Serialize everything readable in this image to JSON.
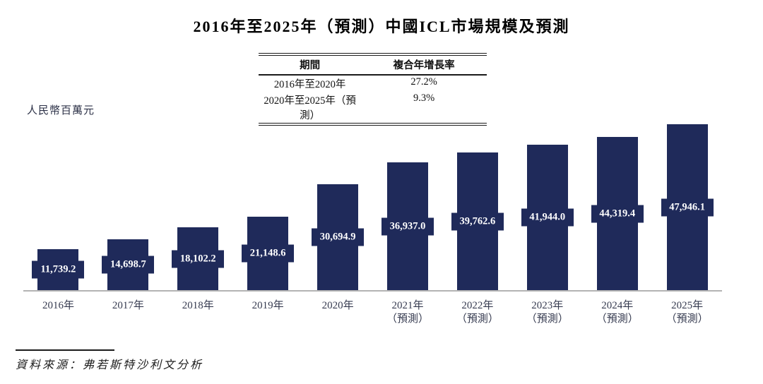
{
  "page": {
    "title": "2016年至2025年（預測）中國ICL市場規模及預測"
  },
  "cagr_table": {
    "col_headers": [
      "期間",
      "複合年增長率"
    ],
    "rows": [
      {
        "period": "2016年至2020年",
        "cagr": "27.2%"
      },
      {
        "period": "2020年至2025年（預測）",
        "cagr": "9.3%"
      }
    ]
  },
  "axis": {
    "unit_label": "人民幣百萬元"
  },
  "source": {
    "text": "資料來源：弗若斯特沙利文分析"
  },
  "colors": {
    "bar": "#1F2A5A",
    "axis_line": "#B3B3B3",
    "badge_text": "#FFFFFF"
  },
  "chart_data": {
    "type": "bar",
    "title": "2016年至2025年（預測）中國ICL市場規模及預測",
    "ylabel": "人民幣百萬元",
    "xlabel": "",
    "ylim": [
      0,
      47946.1
    ],
    "grid": false,
    "legend": "none",
    "categories": [
      {
        "label": "2016年",
        "sub": ""
      },
      {
        "label": "2017年",
        "sub": ""
      },
      {
        "label": "2018年",
        "sub": ""
      },
      {
        "label": "2019年",
        "sub": ""
      },
      {
        "label": "2020年",
        "sub": ""
      },
      {
        "label": "2021年",
        "sub": "（預測）"
      },
      {
        "label": "2022年",
        "sub": "（預測）"
      },
      {
        "label": "2023年",
        "sub": "（預測）"
      },
      {
        "label": "2024年",
        "sub": "（預測）"
      },
      {
        "label": "2025年",
        "sub": "（預測）"
      }
    ],
    "values": [
      11739.2,
      14698.7,
      18102.2,
      21148.6,
      30694.9,
      36937.0,
      39762.6,
      41944.0,
      44319.4,
      47946.1
    ],
    "value_labels": [
      "11,739.2",
      "14,698.7",
      "18,102.2",
      "21,148.6",
      "30,694.9",
      "36,937.0",
      "39,762.6",
      "41,944.0",
      "44,319.4",
      "47,946.1"
    ],
    "annotations": {
      "cagr_2016_2020": "27.2%",
      "cagr_2020_2025_forecast": "9.3%"
    }
  }
}
